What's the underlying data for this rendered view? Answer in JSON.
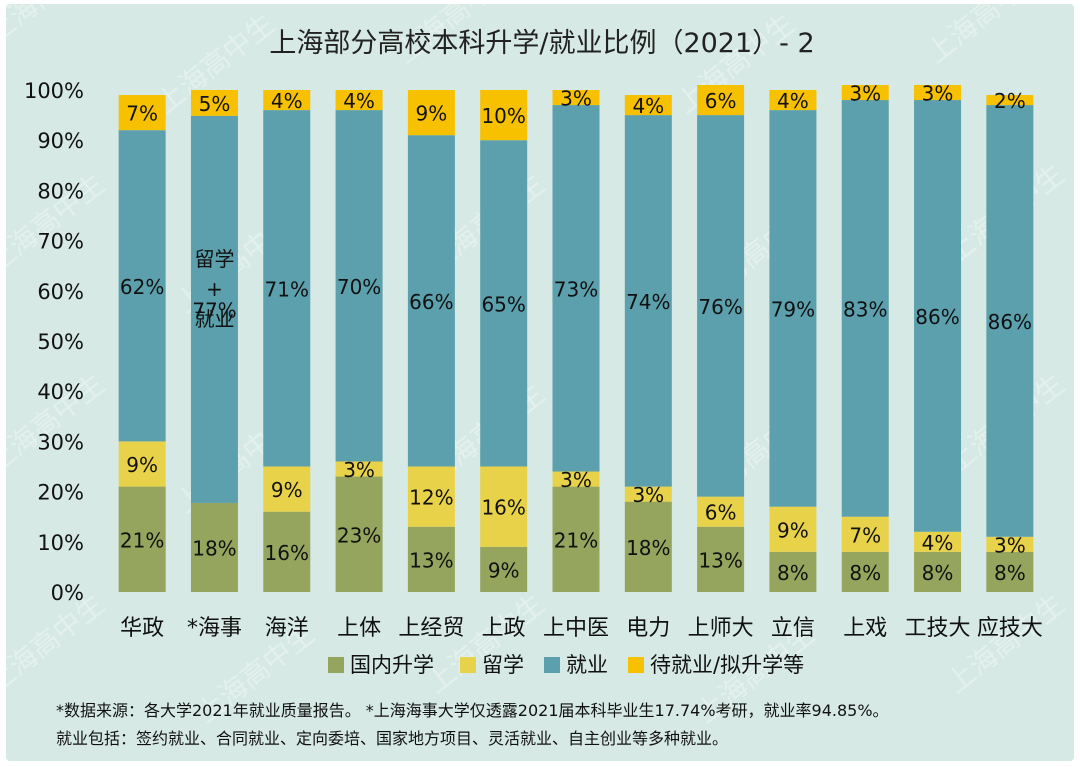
{
  "chart_data": {
    "type": "bar",
    "stacked": true,
    "title": "上海部分高校本科升学/就业比例（2021）- 2",
    "ylim": [
      0,
      100
    ],
    "y_ticks": [
      "0%",
      "10%",
      "20%",
      "30%",
      "40%",
      "50%",
      "60%",
      "70%",
      "80%",
      "90%",
      "100%"
    ],
    "categories": [
      "华政",
      "*海事",
      "海洋",
      "上体",
      "上经贸",
      "上政",
      "上中医",
      "电力",
      "上师大",
      "立信",
      "上戏",
      "工技大",
      "应技大"
    ],
    "series": [
      {
        "name": "国内升学",
        "color": "#95a55e",
        "values": [
          21,
          17.74,
          16,
          23,
          13,
          9,
          21,
          18,
          13,
          8,
          8,
          8,
          8
        ],
        "labels": [
          "21%",
          "18%",
          "16%",
          "23%",
          "13%",
          "9%",
          "21%",
          "18%",
          "13%",
          "8%",
          "8%",
          "8%",
          "8%"
        ]
      },
      {
        "name": "留学",
        "color": "#e8d24a",
        "values": [
          9,
          0,
          9,
          3,
          12,
          16,
          3,
          3,
          6,
          9,
          7,
          4,
          3
        ],
        "labels": [
          "9%",
          "",
          "9%",
          "3%",
          "12%",
          "16%",
          "3%",
          "3%",
          "6%",
          "9%",
          "7%",
          "4%",
          "3%"
        ]
      },
      {
        "name": "就业",
        "color": "#5ba0ac",
        "values": [
          62,
          77.11,
          71,
          70,
          66,
          65,
          73,
          74,
          76,
          79,
          83,
          86,
          86
        ],
        "labels": [
          "62%",
          "77%",
          "71%",
          "70%",
          "66%",
          "65%",
          "73%",
          "74%",
          "76%",
          "79%",
          "83%",
          "86%",
          "86%"
        ]
      },
      {
        "name": "待就业/拟升学等",
        "color": "#f7c100",
        "values": [
          7,
          5.15,
          4,
          4,
          9,
          10,
          3,
          4,
          6,
          4,
          3,
          3,
          2
        ],
        "labels": [
          "7%",
          "5%",
          "4%",
          "4%",
          "9%",
          "10%",
          "3%",
          "4%",
          "6%",
          "4%",
          "3%",
          "3%",
          "2%"
        ]
      }
    ],
    "annotation": {
      "category": "*海事",
      "lines": [
        "留学",
        "+",
        "就业"
      ]
    },
    "legend_position": "bottom",
    "grid": false
  },
  "notes": [
    "*数据来源：各大学2021年就业质量报告。 *上海海事大学仅透露2021届本科毕业生17.74%考研，就业率94.85%。",
    "就业包括：签约就业、合同就业、定向委培、国家地方项目、灵活就业、自主创业等多种就业。"
  ],
  "watermark": "上海高中生"
}
